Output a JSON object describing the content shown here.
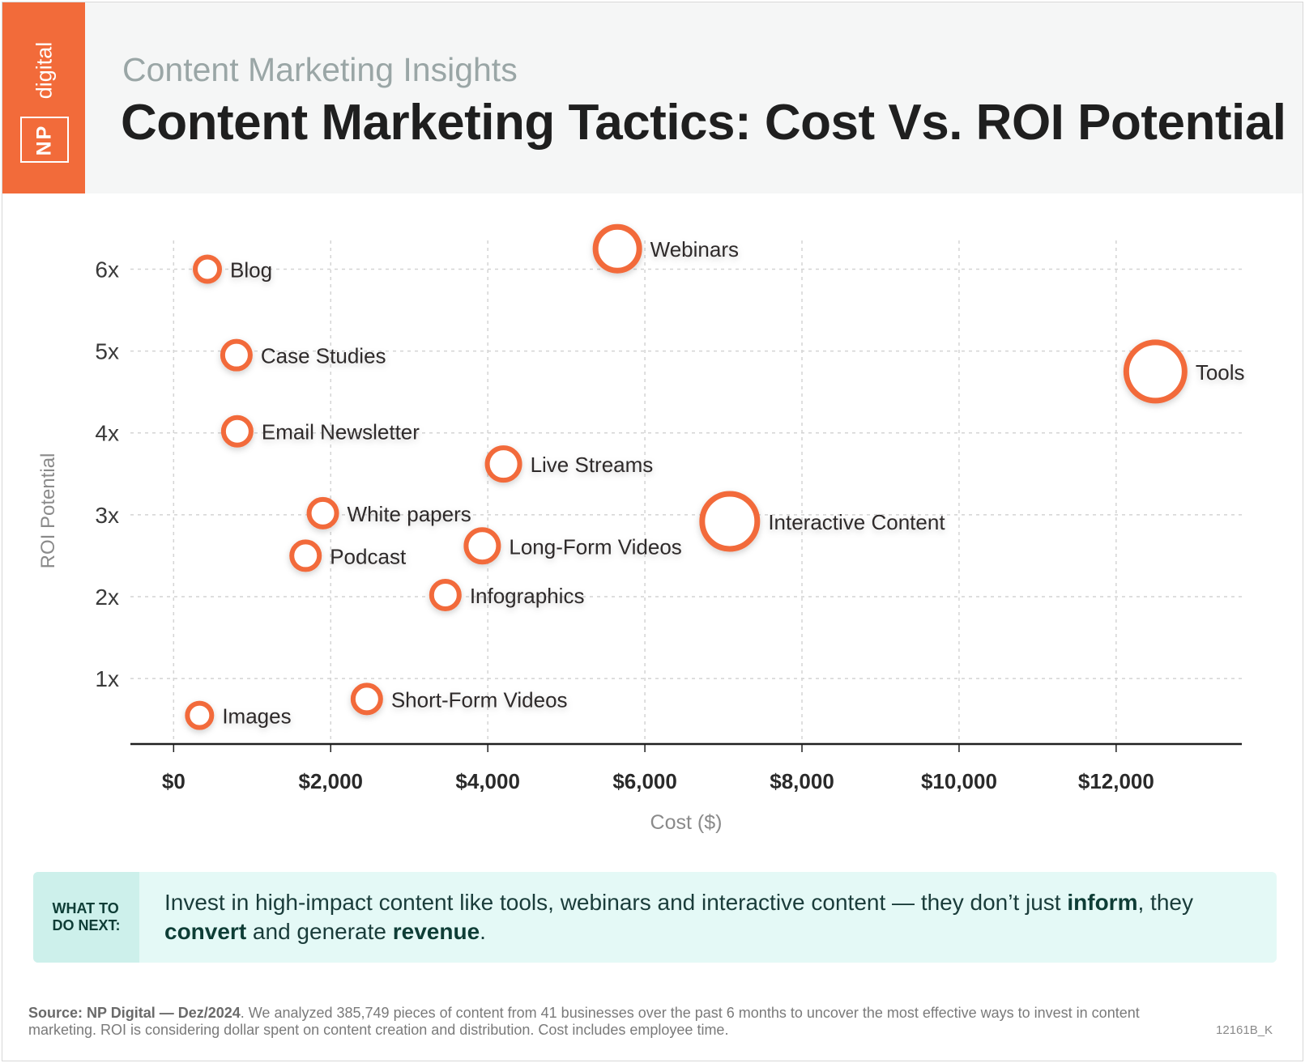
{
  "header": {
    "logo_np": "NP",
    "logo_digital": "digital",
    "subtitle": "Content Marketing Insights",
    "title": "Content Marketing Tactics: Cost Vs. ROI Potential"
  },
  "chart_data": {
    "type": "scatter",
    "xlabel": "Cost ($)",
    "ylabel": "ROI Potential",
    "xlim": [
      -550,
      13600
    ],
    "ylim": [
      0.2,
      6.45
    ],
    "x_ticks": [
      0,
      2000,
      4000,
      6000,
      8000,
      10000,
      12000
    ],
    "x_tick_labels": [
      "$0",
      "$2,000",
      "$4,000",
      "$6,000",
      "$8,000",
      "$10,000",
      "$12,000"
    ],
    "y_ticks": [
      1,
      2,
      3,
      4,
      5,
      6
    ],
    "y_tick_labels": [
      "1x",
      "2x",
      "3x",
      "4x",
      "5x",
      "6x"
    ],
    "grid": true,
    "marker_color": "#f26b3a",
    "points": [
      {
        "label": "Blog",
        "x": 430,
        "y": 6.0,
        "size": 1
      },
      {
        "label": "Webinars",
        "x": 5650,
        "y": 6.25,
        "size": 4
      },
      {
        "label": "Case Studies",
        "x": 800,
        "y": 4.95,
        "size": 2
      },
      {
        "label": "Tools",
        "x": 12500,
        "y": 4.75,
        "size": 7
      },
      {
        "label": "Email Newsletter",
        "x": 810,
        "y": 4.02,
        "size": 2
      },
      {
        "label": "Live Streams",
        "x": 4200,
        "y": 3.62,
        "size": 3
      },
      {
        "label": "White papers",
        "x": 1900,
        "y": 3.02,
        "size": 2
      },
      {
        "label": "Interactive Content",
        "x": 7080,
        "y": 2.92,
        "size": 5
      },
      {
        "label": "Long-Form Videos",
        "x": 3930,
        "y": 2.62,
        "size": 3
      },
      {
        "label": "Podcast",
        "x": 1680,
        "y": 2.5,
        "size": 2
      },
      {
        "label": "Infographics",
        "x": 3460,
        "y": 2.02,
        "size": 2
      },
      {
        "label": "Short-Form Videos",
        "x": 2460,
        "y": 0.75,
        "size": 2
      },
      {
        "label": "Images",
        "x": 330,
        "y": 0.55,
        "size": 1
      }
    ]
  },
  "tip": {
    "label": "WHAT TO\nDO NEXT:",
    "text_1": "Invest in high-impact content like tools, webinars and interactive content — they don’t just ",
    "bold_1": "inform",
    "text_2": ", they ",
    "bold_2": "convert",
    "text_3": " and generate ",
    "bold_3": "revenue",
    "text_4": "."
  },
  "footer": {
    "source_label": "Source:  NP Digital — Dez/2024",
    "source_text": ". We analyzed 385,749 pieces of content from 41 businesses over the past 6 months to uncover the most effective ways to invest in content marketing. ROI is considering dollar spent on content creation and distribution. Cost includes employee time.",
    "code": "12161B_K"
  }
}
